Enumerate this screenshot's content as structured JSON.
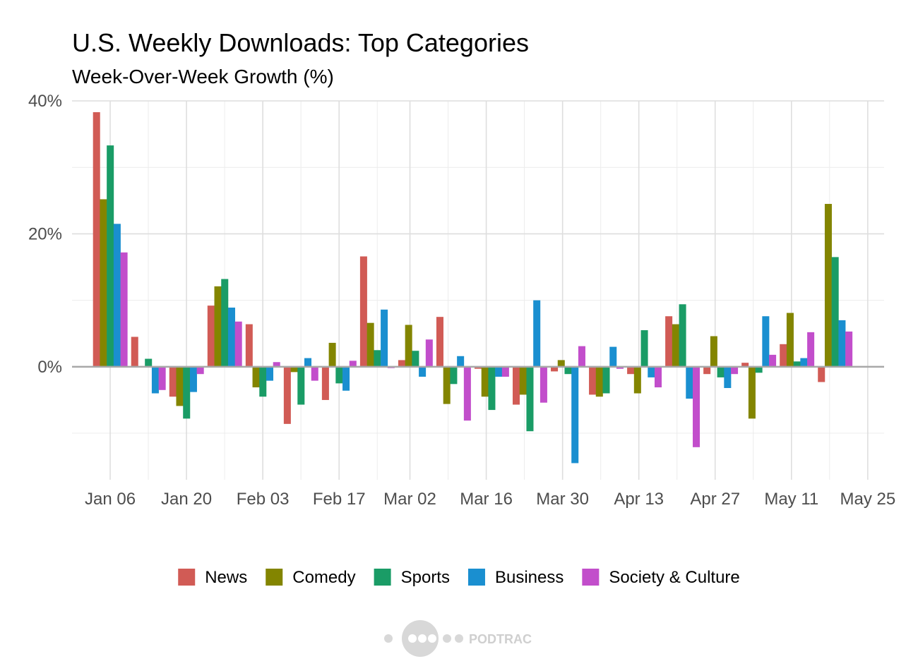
{
  "chart_data": {
    "type": "bar",
    "title": "U.S. Weekly Downloads: Top Categories",
    "subtitle": "Week-Over-Week Growth (%)",
    "xlabel": "",
    "ylabel": "",
    "ylim": [
      -17,
      40
    ],
    "yticks": [
      0,
      20,
      40
    ],
    "ytick_labels": [
      "0%",
      "20%",
      "40%"
    ],
    "xlim": [
      "2024-12-30",
      "2025-05-28"
    ],
    "xticks": [
      "2025-01-06",
      "2025-01-20",
      "2025-02-03",
      "2025-02-17",
      "2025-03-02",
      "2025-03-16",
      "2025-03-30",
      "2025-04-13",
      "2025-04-27",
      "2025-05-11",
      "2025-05-25"
    ],
    "xtick_labels": [
      "Jan 06",
      "Jan 20",
      "Feb 03",
      "Feb 17",
      "Mar 02",
      "Mar 16",
      "Mar 30",
      "Apr 13",
      "Apr 27",
      "May 11",
      "May 25"
    ],
    "grid": true,
    "legend_position": "bottom",
    "x": [
      "2025-01-06",
      "2025-01-13",
      "2025-01-20",
      "2025-01-27",
      "2025-02-03",
      "2025-02-10",
      "2025-02-17",
      "2025-02-24",
      "2025-03-03",
      "2025-03-10",
      "2025-03-17",
      "2025-03-24",
      "2025-03-31",
      "2025-04-07",
      "2025-04-14",
      "2025-04-21",
      "2025-04-28",
      "2025-05-05",
      "2025-05-12",
      "2025-05-19"
    ],
    "series": [
      {
        "name": "News",
        "color": "#d15b55",
        "values": [
          38.3,
          4.5,
          -4.5,
          9.2,
          6.4,
          -8.6,
          -5.0,
          16.6,
          1.0,
          7.5,
          -0.3,
          -5.7,
          -0.7,
          -4.2,
          -1.1,
          7.6,
          -1.1,
          0.6,
          3.4,
          -2.3
        ]
      },
      {
        "name": "Comedy",
        "color": "#838500",
        "values": [
          25.2,
          0.0,
          -5.9,
          12.1,
          -3.1,
          -0.8,
          3.6,
          6.6,
          6.3,
          -5.6,
          -4.5,
          -4.2,
          1.0,
          -4.5,
          -4.0,
          6.4,
          4.6,
          -7.8,
          8.1,
          24.5
        ]
      },
      {
        "name": "Sports",
        "color": "#1a9c66",
        "values": [
          33.3,
          1.2,
          -7.8,
          13.2,
          -4.5,
          -5.7,
          -2.5,
          2.5,
          2.4,
          -2.6,
          -6.5,
          -9.7,
          -1.1,
          -4.0,
          5.5,
          9.4,
          -1.6,
          -0.9,
          0.8,
          16.5
        ]
      },
      {
        "name": "Business",
        "color": "#1a8fd0",
        "values": [
          21.5,
          -4.0,
          -3.8,
          8.9,
          -2.1,
          1.3,
          -3.6,
          8.6,
          -1.5,
          1.6,
          -1.5,
          10.0,
          -14.5,
          3.0,
          -1.6,
          -4.8,
          -3.2,
          7.6,
          1.3,
          7.0
        ]
      },
      {
        "name": "Society & Culture",
        "color": "#c24ecb",
        "values": [
          17.2,
          -3.5,
          -1.1,
          6.8,
          0.7,
          -2.1,
          0.9,
          -0.2,
          4.1,
          -8.1,
          -1.5,
          -5.4,
          3.1,
          -0.3,
          -3.1,
          -12.1,
          -1.1,
          1.8,
          5.2,
          5.3
        ]
      }
    ]
  },
  "watermark": {
    "brand": "PODTRAC"
  }
}
